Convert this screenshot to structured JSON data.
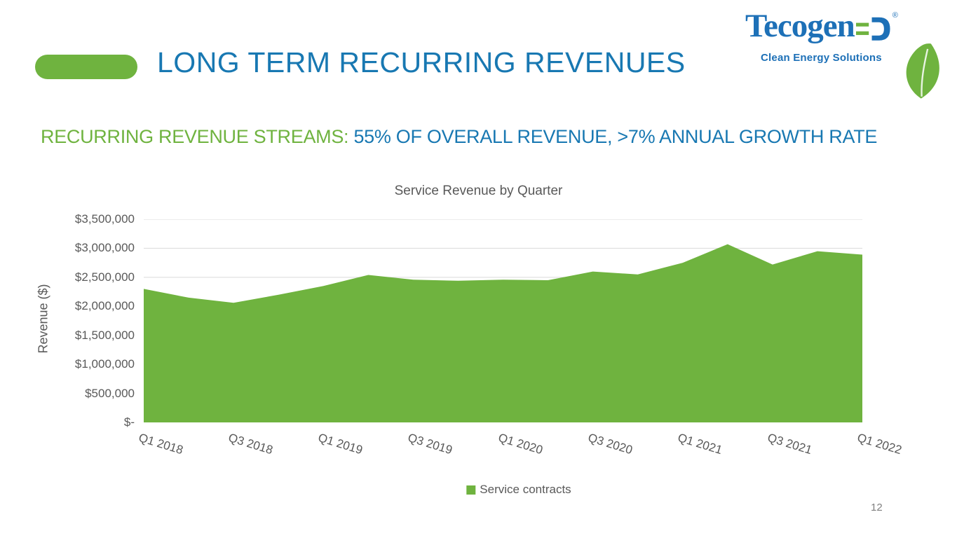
{
  "slide": {
    "title": "LONG TERM RECURRING REVENUES",
    "subtitle_highlight": "RECURRING REVENUE STREAMS:",
    "subtitle_rest": " 55% OF OVERALL REVENUE, >7% ANNUAL GROWTH RATE",
    "page_number": "12"
  },
  "logo": {
    "brand": "Tecogen",
    "registered_mark": "®",
    "tagline": "Clean Energy Solutions",
    "plug_icon": "plug-icon",
    "leaf_icon": "leaf-icon"
  },
  "colors": {
    "blue": "#1878b2",
    "logo_blue": "#1d70b7",
    "green": "#6fb33f",
    "gray_text": "#595959",
    "gridline": "#d9d9d9",
    "axis_line": "#bfbfbf"
  },
  "chart_data": {
    "type": "area",
    "title": "Service Revenue by Quarter",
    "xlabel": "",
    "ylabel": "Revenue ($)",
    "x": [
      "Q1 2018",
      "Q2 2018",
      "Q3 2018",
      "Q4 2018",
      "Q1 2019",
      "Q2 2019",
      "Q3 2019",
      "Q4 2019",
      "Q1 2020",
      "Q2 2020",
      "Q3 2020",
      "Q4 2020",
      "Q1 2021",
      "Q2 2021",
      "Q3 2021",
      "Q4 2021",
      "Q1 2022"
    ],
    "values": [
      2300000,
      2150000,
      2060000,
      2200000,
      2350000,
      2540000,
      2460000,
      2440000,
      2460000,
      2450000,
      2600000,
      2550000,
      2750000,
      3070000,
      2720000,
      2950000,
      2890000
    ],
    "series_color": "#6fb33f",
    "x_tick_labels": [
      "Q1 2018",
      "Q3 2018",
      "Q1 2019",
      "Q3 2019",
      "Q1 2020",
      "Q3 2020",
      "Q1 2021",
      "Q3 2021",
      "Q1 2022"
    ],
    "y_ticks": [
      0,
      500000,
      1000000,
      1500000,
      2000000,
      2500000,
      3000000,
      3500000
    ],
    "y_tick_labels": [
      "$-",
      "$500,000",
      "$1,000,000",
      "$1,500,000",
      "$2,000,000",
      "$2,500,000",
      "$3,000,000",
      "$3,500,000"
    ],
    "ylim": [
      0,
      3500000
    ],
    "grid": true,
    "legend_position": "bottom",
    "legend": [
      {
        "label": "Service contracts",
        "color": "#6fb33f"
      }
    ]
  }
}
